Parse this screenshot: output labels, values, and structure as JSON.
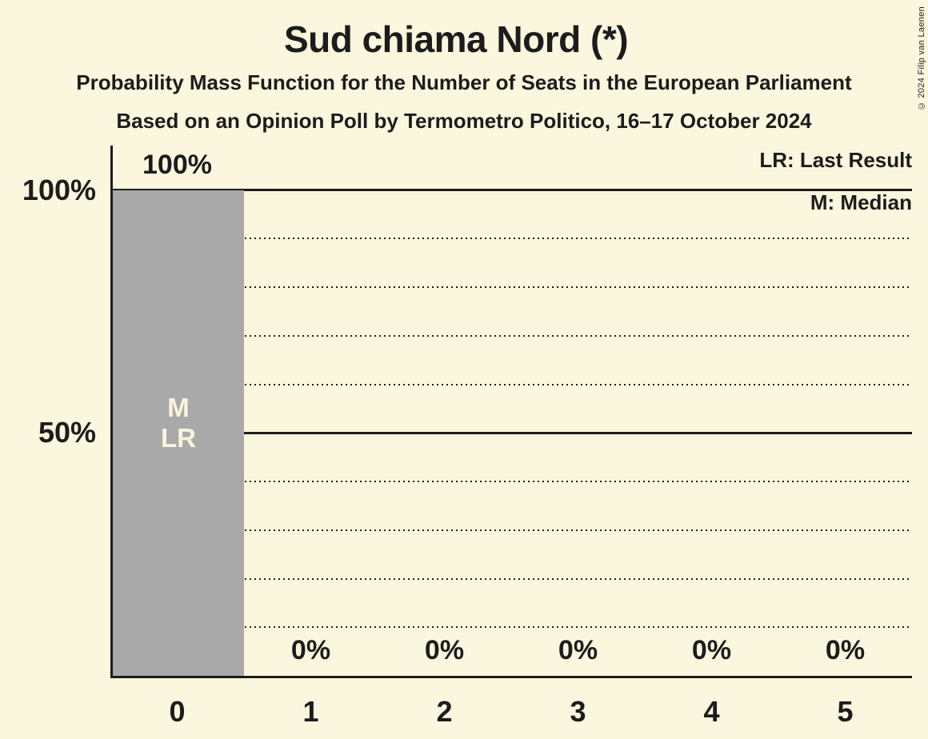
{
  "copyright": "© 2024 Filip van Laenen",
  "colors": {
    "background": "#FBF7DE",
    "bar": "#A9A9A9",
    "text": "#1C1C1C",
    "bar_label_text": "#FAF4DE"
  },
  "chart_data": {
    "type": "bar",
    "title": "Sud chiama Nord (*)",
    "subtitle1": "Probability Mass Function for the Number of Seats in the European Parliament",
    "subtitle2": "Based on an Opinion Poll by Termometro Politico, 16–17 October 2024",
    "legend": {
      "lr_label": "LR: Last Result",
      "m_label": "M: Median",
      "position": "top-right"
    },
    "categories": [
      "0",
      "1",
      "2",
      "3",
      "4",
      "5"
    ],
    "values": [
      100,
      0,
      0,
      0,
      0,
      0
    ],
    "value_labels": [
      "100%",
      "0%",
      "0%",
      "0%",
      "0%",
      "0%"
    ],
    "xlabel": "",
    "ylabel": "",
    "ylim": [
      0,
      100
    ],
    "ytick_labels": [
      {
        "value": 100,
        "label": "100%"
      },
      {
        "value": 50,
        "label": "50%"
      }
    ],
    "gridlines_solid": [
      50,
      100
    ],
    "gridlines_dotted": [
      10,
      20,
      30,
      40,
      60,
      70,
      80,
      90
    ],
    "grid": true,
    "annotations": [
      {
        "category": "0",
        "lines": [
          "M",
          "LR"
        ]
      }
    ]
  }
}
